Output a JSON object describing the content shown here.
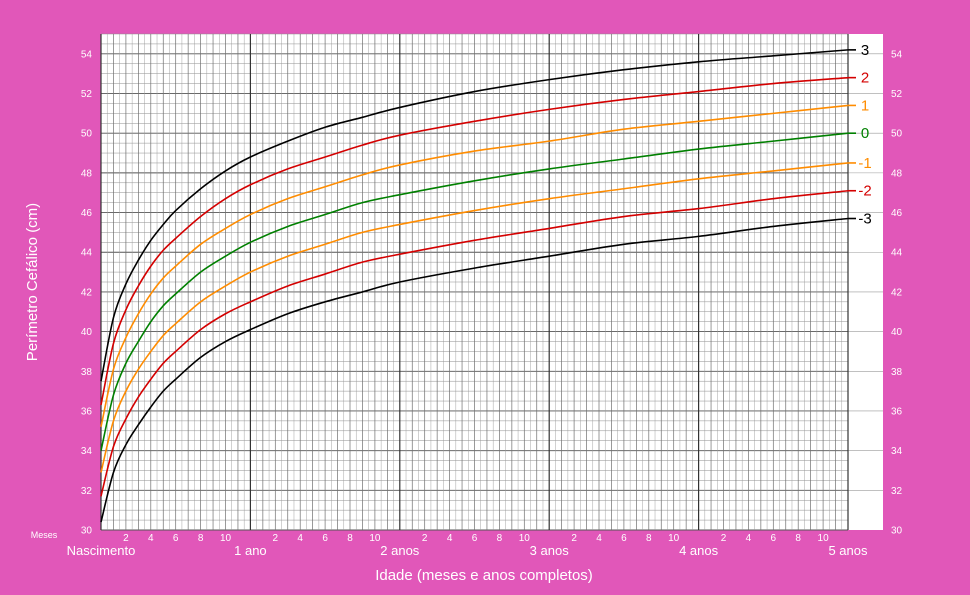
{
  "chart_data": {
    "type": "line",
    "title": "",
    "ylabel": "Perímetro Cefálico (cm)",
    "xlabel": "Idade (meses e anos completos)",
    "months_label": "Meses",
    "xlim": [
      0,
      60
    ],
    "ylim": [
      30,
      55
    ],
    "grid": true,
    "y_ticks": [
      30,
      32,
      34,
      36,
      38,
      40,
      42,
      44,
      46,
      48,
      50,
      52,
      54
    ],
    "x_month_ticks": [
      {
        "month": 2,
        "label": "2"
      },
      {
        "month": 4,
        "label": "4"
      },
      {
        "month": 6,
        "label": "6"
      },
      {
        "month": 8,
        "label": "8"
      },
      {
        "month": 10,
        "label": "10"
      },
      {
        "month": 14,
        "label": "2"
      },
      {
        "month": 16,
        "label": "4"
      },
      {
        "month": 18,
        "label": "6"
      },
      {
        "month": 20,
        "label": "8"
      },
      {
        "month": 22,
        "label": "10"
      },
      {
        "month": 26,
        "label": "2"
      },
      {
        "month": 28,
        "label": "4"
      },
      {
        "month": 30,
        "label": "6"
      },
      {
        "month": 32,
        "label": "8"
      },
      {
        "month": 34,
        "label": "10"
      },
      {
        "month": 38,
        "label": "2"
      },
      {
        "month": 40,
        "label": "4"
      },
      {
        "month": 42,
        "label": "6"
      },
      {
        "month": 44,
        "label": "8"
      },
      {
        "month": 46,
        "label": "10"
      },
      {
        "month": 50,
        "label": "2"
      },
      {
        "month": 52,
        "label": "4"
      },
      {
        "month": 54,
        "label": "6"
      },
      {
        "month": 56,
        "label": "8"
      },
      {
        "month": 58,
        "label": "10"
      }
    ],
    "x_year_labels": [
      {
        "month": 0,
        "label": "Nascimento"
      },
      {
        "month": 12,
        "label": "1 ano"
      },
      {
        "month": 24,
        "label": "2 anos"
      },
      {
        "month": 36,
        "label": "3 anos"
      },
      {
        "month": 48,
        "label": "4 anos"
      },
      {
        "month": 60,
        "label": "5 anos"
      }
    ],
    "x_months": [
      0,
      1,
      2,
      3,
      4,
      5,
      6,
      8,
      10,
      12,
      15,
      18,
      21,
      24,
      30,
      36,
      42,
      48,
      54,
      60
    ],
    "series": [
      {
        "name": "3",
        "color": "#000000",
        "values": [
          37.5,
          40.7,
          42.4,
          43.6,
          44.6,
          45.4,
          46.1,
          47.2,
          48.1,
          48.8,
          49.6,
          50.3,
          50.8,
          51.3,
          52.1,
          52.7,
          53.2,
          53.6,
          53.9,
          54.2
        ]
      },
      {
        "name": "2",
        "color": "#d40000",
        "values": [
          36.3,
          39.4,
          41.1,
          42.3,
          43.3,
          44.1,
          44.7,
          45.8,
          46.7,
          47.4,
          48.2,
          48.8,
          49.4,
          49.9,
          50.6,
          51.2,
          51.7,
          52.1,
          52.5,
          52.8
        ]
      },
      {
        "name": "1",
        "color": "#ff8c00",
        "values": [
          35.2,
          38.1,
          39.7,
          40.9,
          41.9,
          42.7,
          43.3,
          44.4,
          45.2,
          45.9,
          46.7,
          47.3,
          47.9,
          48.4,
          49.1,
          49.6,
          50.2,
          50.6,
          51.0,
          51.4
        ]
      },
      {
        "name": "0",
        "color": "#008000",
        "values": [
          34.0,
          36.8,
          38.4,
          39.5,
          40.5,
          41.3,
          41.9,
          43.0,
          43.8,
          44.5,
          45.3,
          45.9,
          46.5,
          46.9,
          47.6,
          48.2,
          48.7,
          49.2,
          49.6,
          50.0
        ]
      },
      {
        "name": "-1",
        "color": "#ff8c00",
        "values": [
          32.9,
          35.5,
          37.0,
          38.1,
          39.0,
          39.8,
          40.4,
          41.5,
          42.3,
          43.0,
          43.8,
          44.4,
          45.0,
          45.4,
          46.1,
          46.7,
          47.2,
          47.7,
          48.1,
          48.5
        ]
      },
      {
        "name": "-2",
        "color": "#d40000",
        "values": [
          31.7,
          34.2,
          35.6,
          36.7,
          37.6,
          38.4,
          39.0,
          40.1,
          40.9,
          41.5,
          42.3,
          42.9,
          43.5,
          43.9,
          44.6,
          45.2,
          45.8,
          46.2,
          46.7,
          47.1
        ]
      },
      {
        "name": "-3",
        "color": "#000000",
        "values": [
          30.4,
          32.9,
          34.3,
          35.3,
          36.2,
          37.0,
          37.6,
          38.7,
          39.5,
          40.1,
          40.9,
          41.5,
          42.0,
          42.5,
          43.2,
          43.8,
          44.4,
          44.8,
          45.3,
          45.7
        ]
      }
    ]
  }
}
